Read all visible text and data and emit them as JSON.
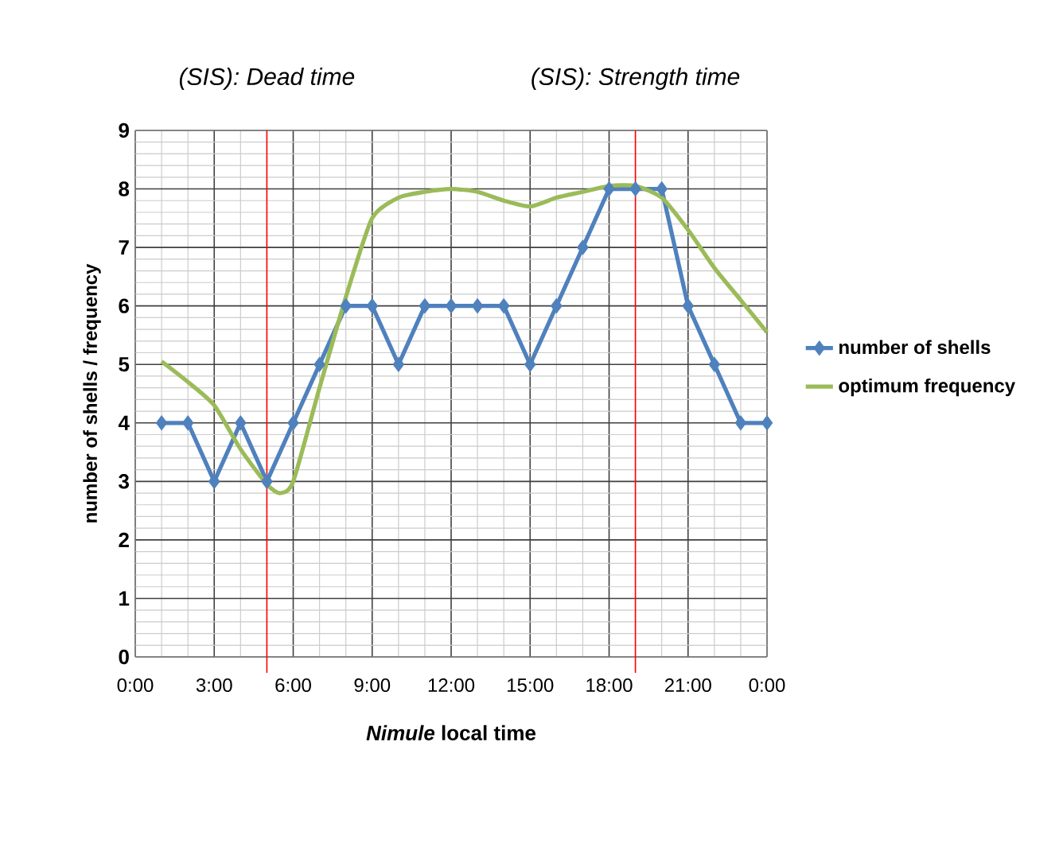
{
  "chart_data": {
    "type": "line",
    "xlabel": "*Nimule* local time",
    "ylabel": "number of shells / frequency",
    "x": [
      1,
      2,
      3,
      4,
      5,
      6,
      7,
      8,
      9,
      10,
      11,
      12,
      13,
      14,
      15,
      16,
      17,
      18,
      19,
      20,
      21,
      22,
      23,
      24
    ],
    "series": [
      {
        "name": "number of shells",
        "color": "#4f81bd",
        "marker": "diamond",
        "values": [
          4,
          4,
          3,
          4,
          3,
          4,
          5,
          6,
          6,
          5,
          6,
          6,
          6,
          6,
          5,
          6,
          7,
          8,
          8,
          8,
          6,
          5,
          4,
          4
        ]
      },
      {
        "name": "optimum frequency",
        "color": "#9bbb59",
        "marker": "none",
        "x": [
          1,
          2,
          3,
          4,
          5,
          5.5,
          6,
          7,
          8,
          9,
          10,
          11,
          12,
          13,
          14,
          15,
          16,
          17,
          18,
          19,
          20,
          21,
          22,
          23,
          24
        ],
        "values": [
          5.05,
          4.7,
          4.3,
          3.55,
          2.95,
          2.8,
          3.0,
          4.6,
          6.15,
          7.5,
          7.85,
          7.95,
          8.0,
          7.95,
          7.8,
          7.7,
          7.85,
          7.95,
          8.05,
          8.05,
          7.85,
          7.3,
          6.65,
          6.1,
          5.55
        ]
      }
    ],
    "xlim": [
      0,
      24
    ],
    "xticks": [
      {
        "value": 0,
        "label": "0:00"
      },
      {
        "value": 3,
        "label": "3:00"
      },
      {
        "value": 6,
        "label": "6:00"
      },
      {
        "value": 9,
        "label": "9:00"
      },
      {
        "value": 12,
        "label": "12:00"
      },
      {
        "value": 15,
        "label": "15:00"
      },
      {
        "value": 18,
        "label": "18:00"
      },
      {
        "value": 21,
        "label": "21:00"
      },
      {
        "value": 24,
        "label": "0:00"
      }
    ],
    "ylim": [
      0,
      9
    ],
    "yticks": [
      0,
      1,
      2,
      3,
      4,
      5,
      6,
      7,
      8,
      9
    ],
    "ref_lines": [
      {
        "axis": "x",
        "value": 5,
        "label": "(SIS): Dead time",
        "color": "#ff0000"
      },
      {
        "axis": "x",
        "value": 19,
        "label": "(SIS): Strength time",
        "color": "#ff0000"
      }
    ],
    "grid": true,
    "legend": "right"
  }
}
